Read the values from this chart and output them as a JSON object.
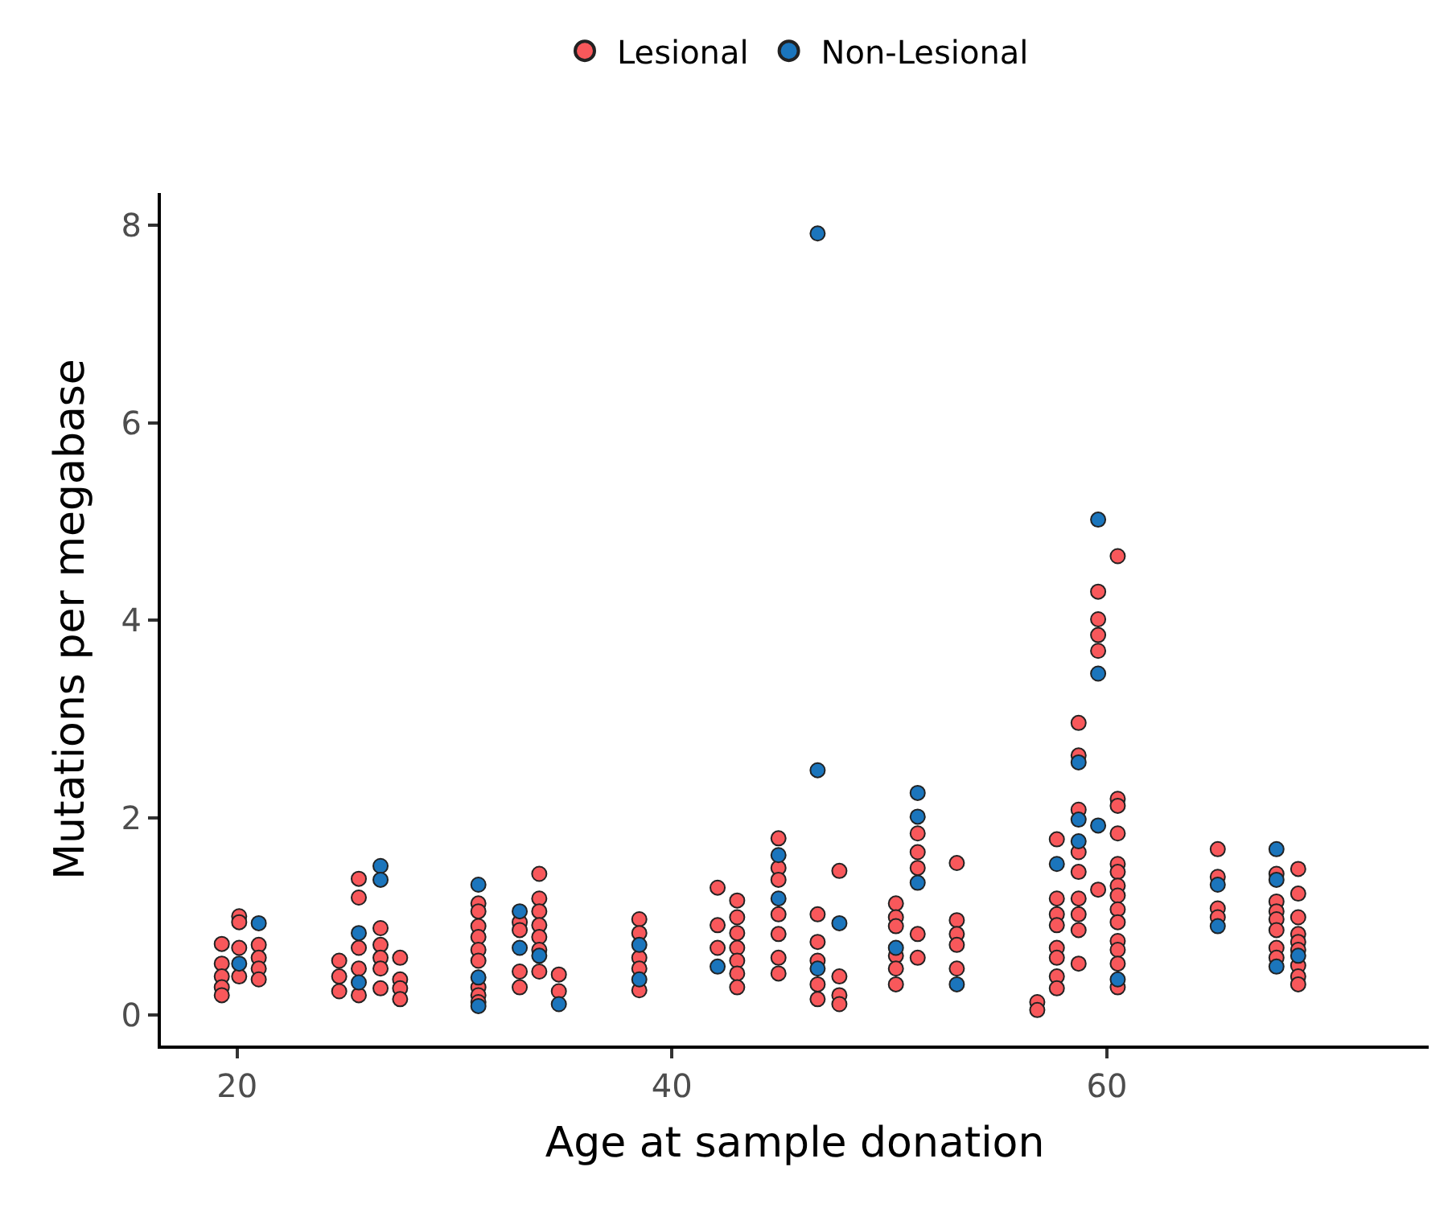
{
  "chart_data": {
    "type": "scatter",
    "xlabel": "Age at sample donation",
    "ylabel": "Mutations per megabase",
    "xlim": [
      16.5,
      74.8
    ],
    "ylim": [
      -0.31,
      8.33
    ],
    "xticks": [
      20,
      40,
      60
    ],
    "yticks": [
      0,
      2,
      4,
      6,
      8
    ],
    "legend": "top",
    "marker": "circle",
    "series": [
      {
        "name": "Lesional",
        "color": "#f8585b",
        "x": [
          19.3,
          19.3,
          19.3,
          19.3,
          19.3,
          20.1,
          20.1,
          20.1,
          20.1,
          21.0,
          21.0,
          21.0,
          21.0,
          24.7,
          24.7,
          24.7,
          25.6,
          25.6,
          25.6,
          25.6,
          25.6,
          26.6,
          26.6,
          26.6,
          26.6,
          26.6,
          27.5,
          27.5,
          27.5,
          27.5,
          31.1,
          31.1,
          31.1,
          31.1,
          31.1,
          31.1,
          31.1,
          31.1,
          31.1,
          33.0,
          33.0,
          33.0,
          33.0,
          33.9,
          33.9,
          33.9,
          33.9,
          33.9,
          33.9,
          33.9,
          34.8,
          34.8,
          38.5,
          38.5,
          38.5,
          38.5,
          38.5,
          42.1,
          42.1,
          42.1,
          43.0,
          43.0,
          43.0,
          43.0,
          43.0,
          43.0,
          43.0,
          44.9,
          44.9,
          44.9,
          44.9,
          44.9,
          44.9,
          44.9,
          46.7,
          46.7,
          46.7,
          46.7,
          46.7,
          47.7,
          47.7,
          47.7,
          47.7,
          50.3,
          50.3,
          50.3,
          50.3,
          50.3,
          50.3,
          51.3,
          51.3,
          51.3,
          51.3,
          51.3,
          53.1,
          53.1,
          53.1,
          53.1,
          53.1,
          56.8,
          56.8,
          57.7,
          57.7,
          57.7,
          57.7,
          57.7,
          57.7,
          57.7,
          57.7,
          58.7,
          58.7,
          58.7,
          58.7,
          58.7,
          58.7,
          58.7,
          58.7,
          58.7,
          59.6,
          59.6,
          59.6,
          59.6,
          59.6,
          60.5,
          60.5,
          60.5,
          60.5,
          60.5,
          60.5,
          60.5,
          60.5,
          60.5,
          60.5,
          60.5,
          60.5,
          60.5,
          60.5,
          65.1,
          65.1,
          65.1,
          65.1,
          67.8,
          67.8,
          67.8,
          67.8,
          67.8,
          67.8,
          67.8,
          68.8,
          68.8,
          68.8,
          68.8,
          68.8,
          68.8,
          68.8,
          68.8,
          68.8
        ],
        "values": [
          0.72,
          0.52,
          0.39,
          0.28,
          0.2,
          1.0,
          0.94,
          0.68,
          0.39,
          0.71,
          0.58,
          0.47,
          0.36,
          0.55,
          0.39,
          0.24,
          1.38,
          1.19,
          0.68,
          0.47,
          0.2,
          0.88,
          0.71,
          0.58,
          0.47,
          0.27,
          0.58,
          0.36,
          0.27,
          0.16,
          1.13,
          1.05,
          0.9,
          0.79,
          0.66,
          0.55,
          0.28,
          0.2,
          0.13,
          0.94,
          0.86,
          0.44,
          0.28,
          1.43,
          1.18,
          1.05,
          0.91,
          0.79,
          0.66,
          0.44,
          0.41,
          0.24,
          0.97,
          0.83,
          0.58,
          0.47,
          0.25,
          1.29,
          0.91,
          0.68,
          1.16,
          0.99,
          0.83,
          0.68,
          0.55,
          0.42,
          0.28,
          1.79,
          1.49,
          1.37,
          1.02,
          0.82,
          0.58,
          0.42,
          1.02,
          0.74,
          0.55,
          0.31,
          0.16,
          1.46,
          0.39,
          0.2,
          0.11,
          1.13,
          0.99,
          0.9,
          0.6,
          0.47,
          0.31,
          1.84,
          1.65,
          1.49,
          0.82,
          0.58,
          1.54,
          0.96,
          0.82,
          0.71,
          0.47,
          0.13,
          0.05,
          1.78,
          1.18,
          1.02,
          0.91,
          0.68,
          0.58,
          0.39,
          0.27,
          2.96,
          2.63,
          2.08,
          1.65,
          1.45,
          1.18,
          1.02,
          0.86,
          0.52,
          4.29,
          4.01,
          3.85,
          3.69,
          1.27,
          4.65,
          2.19,
          2.12,
          1.84,
          1.53,
          1.45,
          1.31,
          1.21,
          1.07,
          0.94,
          0.75,
          0.66,
          0.52,
          0.28,
          1.68,
          1.4,
          1.08,
          0.99,
          1.43,
          1.15,
          1.05,
          0.97,
          0.86,
          0.68,
          0.58,
          1.48,
          1.23,
          0.99,
          0.82,
          0.74,
          0.66,
          0.5,
          0.39,
          0.31
        ]
      },
      {
        "name": "Non-Lesional",
        "color": "#1b75bc",
        "x": [
          20.1,
          21.0,
          25.6,
          25.6,
          26.6,
          26.6,
          31.1,
          31.1,
          31.1,
          33.0,
          33.0,
          33.9,
          34.8,
          38.5,
          38.5,
          42.1,
          44.9,
          44.9,
          46.7,
          46.7,
          46.7,
          47.7,
          50.3,
          51.3,
          51.3,
          51.3,
          53.1,
          57.7,
          58.7,
          58.7,
          58.7,
          59.6,
          59.6,
          59.6,
          60.5,
          65.1,
          65.1,
          67.8,
          67.8,
          67.8,
          68.8
        ],
        "values": [
          0.52,
          0.93,
          0.83,
          0.33,
          1.51,
          1.37,
          1.32,
          0.38,
          0.09,
          1.05,
          0.68,
          0.6,
          0.11,
          0.71,
          0.36,
          0.49,
          1.62,
          1.18,
          7.92,
          2.48,
          0.47,
          0.93,
          0.68,
          2.25,
          2.01,
          1.34,
          0.31,
          1.53,
          2.56,
          1.98,
          1.76,
          5.02,
          3.46,
          1.92,
          0.36,
          1.32,
          0.9,
          1.68,
          1.37,
          0.49,
          0.6
        ]
      }
    ]
  }
}
